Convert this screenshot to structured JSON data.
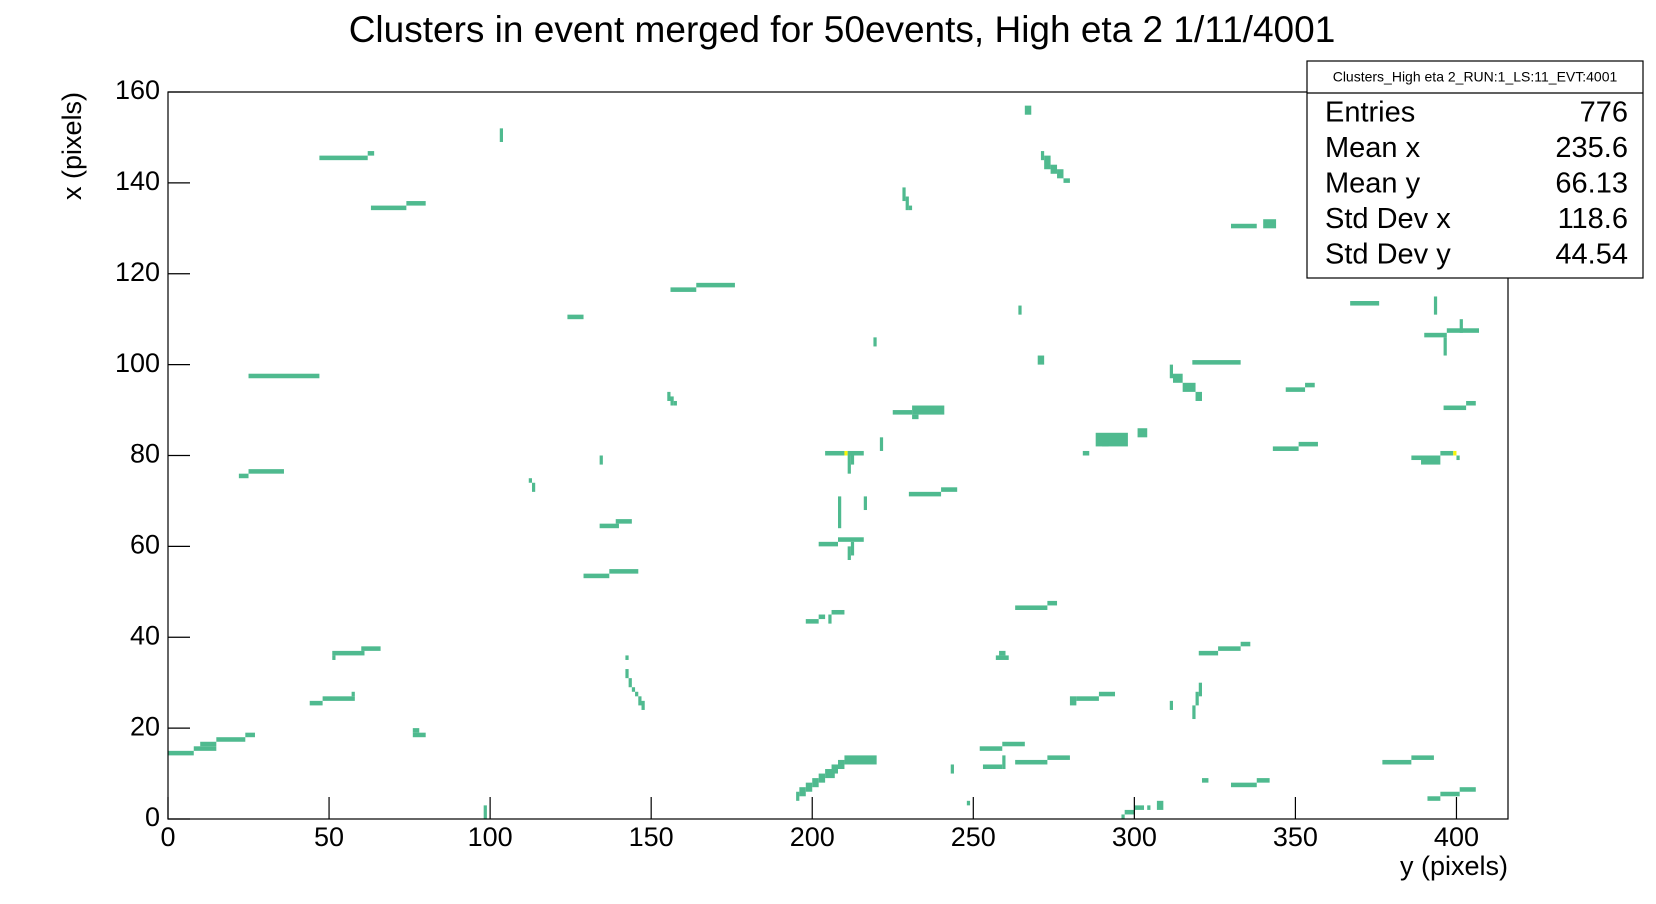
{
  "chart_data": {
    "type": "hist2d",
    "title": "Clusters in event merged for 50events, High eta 2 1/11/4001",
    "x_label": "y (pixels)",
    "y_label": "x (pixels)",
    "xlim": [
      0,
      416
    ],
    "ylim": [
      0,
      160
    ],
    "xticks": [
      0,
      50,
      100,
      150,
      200,
      250,
      300,
      350,
      400
    ],
    "yticks": [
      0,
      20,
      40,
      60,
      80,
      100,
      120,
      140,
      160
    ],
    "color_scale": [
      "#4fba8f",
      "#f5f50a"
    ],
    "zlim": [
      1,
      2
    ],
    "stats": {
      "title": "Clusters_High eta 2_RUN:1_LS:11_EVT:4001",
      "rows": [
        [
          "Entries",
          "776"
        ],
        [
          "Mean x",
          "235.6"
        ],
        [
          "Mean y",
          "66.13"
        ],
        [
          "Std Dev x",
          "118.6"
        ],
        [
          "Std Dev y",
          "44.54"
        ]
      ]
    },
    "cells": [
      [
        47,
        62,
        145,
        146,
        1
      ],
      [
        62,
        64,
        146,
        147,
        1
      ],
      [
        63,
        74,
        134,
        135,
        1
      ],
      [
        74,
        80,
        135,
        136,
        1
      ],
      [
        25,
        47,
        97,
        98,
        1
      ],
      [
        22,
        25,
        75,
        76,
        1
      ],
      [
        25,
        36,
        76,
        77,
        1
      ],
      [
        0,
        8,
        14,
        15,
        1
      ],
      [
        8,
        15,
        15,
        16,
        1
      ],
      [
        10,
        15,
        16,
        17,
        1
      ],
      [
        15,
        24,
        17,
        18,
        1
      ],
      [
        24,
        27,
        18,
        19,
        1
      ],
      [
        44,
        48,
        25,
        26,
        1
      ],
      [
        48,
        58,
        26,
        27,
        1
      ],
      [
        57,
        58,
        27,
        28,
        1
      ],
      [
        51,
        52,
        35,
        36,
        1
      ],
      [
        51,
        61,
        36,
        37,
        1
      ],
      [
        60,
        66,
        37,
        38,
        1
      ],
      [
        76,
        80,
        18,
        19,
        1
      ],
      [
        76,
        78,
        19,
        20,
        1
      ],
      [
        98,
        99,
        0,
        3,
        1
      ],
      [
        103,
        104,
        149,
        152,
        1
      ],
      [
        124,
        129,
        110,
        111,
        1
      ],
      [
        112,
        113,
        74,
        75,
        1
      ],
      [
        113,
        114,
        72,
        74,
        1
      ],
      [
        134,
        135,
        78,
        80,
        1
      ],
      [
        134,
        140,
        64,
        65,
        1
      ],
      [
        139,
        144,
        65,
        66,
        1
      ],
      [
        129,
        137,
        53,
        54,
        1
      ],
      [
        137,
        146,
        54,
        55,
        1
      ],
      [
        142,
        143,
        35,
        36,
        1
      ],
      [
        142,
        143,
        31,
        33,
        1
      ],
      [
        143,
        144,
        29,
        31,
        1
      ],
      [
        144,
        145,
        28,
        29,
        1
      ],
      [
        145,
        146,
        27,
        28,
        1
      ],
      [
        146,
        147,
        25,
        27,
        1
      ],
      [
        147,
        148,
        24,
        26,
        1
      ],
      [
        155,
        156,
        92,
        94,
        1
      ],
      [
        156,
        157,
        91,
        93,
        1
      ],
      [
        157,
        158,
        91,
        92,
        1
      ],
      [
        156,
        164,
        116,
        117,
        1
      ],
      [
        164,
        176,
        117,
        118,
        1
      ],
      [
        195,
        196,
        4,
        6,
        1
      ],
      [
        196,
        198,
        5,
        7,
        1
      ],
      [
        198,
        200,
        6,
        8,
        1
      ],
      [
        200,
        202,
        7,
        9,
        1
      ],
      [
        202,
        204,
        8,
        10,
        1
      ],
      [
        204,
        207,
        9,
        11,
        1
      ],
      [
        206,
        208,
        10,
        12,
        1
      ],
      [
        208,
        210,
        11,
        13,
        1
      ],
      [
        210,
        220,
        12,
        14,
        1
      ],
      [
        198,
        202,
        43,
        44,
        1
      ],
      [
        202,
        204,
        44,
        45,
        1
      ],
      [
        205,
        206,
        43,
        45,
        1
      ],
      [
        206,
        210,
        45,
        46,
        1
      ],
      [
        202,
        208,
        60,
        61,
        1
      ],
      [
        208,
        216,
        61,
        62,
        1
      ],
      [
        211,
        212,
        57,
        60,
        1
      ],
      [
        212,
        213,
        58,
        61,
        1
      ],
      [
        204,
        210,
        80,
        81,
        1
      ],
      [
        210,
        211,
        80,
        81,
        2
      ],
      [
        211,
        216,
        80,
        81,
        1
      ],
      [
        211,
        212,
        76,
        80,
        1
      ],
      [
        212,
        213,
        78,
        80,
        1
      ],
      [
        208,
        209,
        64,
        71,
        1
      ],
      [
        216,
        217,
        68,
        71,
        1
      ],
      [
        219,
        220,
        104,
        106,
        1
      ],
      [
        221,
        222,
        81,
        84,
        1
      ],
      [
        225,
        231,
        89,
        90,
        1
      ],
      [
        231,
        241,
        89,
        91,
        1
      ],
      [
        231,
        233,
        88,
        89,
        1
      ],
      [
        228,
        229,
        136,
        139,
        1
      ],
      [
        229,
        230,
        134,
        137,
        1
      ],
      [
        230,
        231,
        134,
        135,
        1
      ],
      [
        230,
        240,
        71,
        72,
        1
      ],
      [
        240,
        245,
        72,
        73,
        1
      ],
      [
        243,
        244,
        10,
        12,
        1
      ],
      [
        248,
        249,
        3,
        4,
        1
      ],
      [
        252,
        259,
        15,
        16,
        1
      ],
      [
        259,
        266,
        16,
        17,
        1
      ],
      [
        253,
        259,
        11,
        12,
        1
      ],
      [
        259,
        260,
        11,
        14,
        1
      ],
      [
        257,
        261,
        35,
        36,
        1
      ],
      [
        258,
        260,
        36,
        37,
        1
      ],
      [
        263,
        273,
        46,
        47,
        1
      ],
      [
        273,
        276,
        47,
        48,
        1
      ],
      [
        266,
        268,
        155,
        157,
        1
      ],
      [
        264,
        265,
        111,
        113,
        1
      ],
      [
        270,
        272,
        100,
        102,
        1
      ],
      [
        263,
        273,
        12,
        13,
        1
      ],
      [
        273,
        280,
        13,
        14,
        1
      ],
      [
        271,
        272,
        145,
        147,
        1
      ],
      [
        272,
        274,
        143,
        146,
        1
      ],
      [
        274,
        276,
        142,
        144,
        1
      ],
      [
        276,
        278,
        141,
        143,
        1
      ],
      [
        278,
        280,
        140,
        141,
        1
      ],
      [
        280,
        282,
        25,
        27,
        1
      ],
      [
        282,
        289,
        26,
        27,
        1
      ],
      [
        289,
        294,
        27,
        28,
        1
      ],
      [
        284,
        286,
        80,
        81,
        1
      ],
      [
        288,
        298,
        82,
        85,
        1
      ],
      [
        290,
        292,
        82,
        83,
        1
      ],
      [
        301,
        304,
        84,
        86,
        1
      ],
      [
        296,
        297,
        0,
        1,
        1
      ],
      [
        297,
        300,
        1,
        2,
        1
      ],
      [
        300,
        303,
        2,
        3,
        1
      ],
      [
        304,
        305,
        2,
        3,
        1
      ],
      [
        307,
        309,
        2,
        4,
        1
      ],
      [
        311,
        312,
        24,
        26,
        1
      ],
      [
        311,
        312,
        97,
        100,
        1
      ],
      [
        312,
        315,
        96,
        98,
        1
      ],
      [
        315,
        319,
        94,
        96,
        1
      ],
      [
        319,
        321,
        92,
        94,
        1
      ],
      [
        318,
        319,
        22,
        25,
        1
      ],
      [
        319,
        320,
        25,
        28,
        1
      ],
      [
        320,
        321,
        27,
        30,
        1
      ],
      [
        318,
        333,
        100,
        101,
        1
      ],
      [
        321,
        323,
        8,
        9,
        1
      ],
      [
        320,
        326,
        36,
        37,
        1
      ],
      [
        326,
        333,
        37,
        38,
        1
      ],
      [
        333,
        336,
        38,
        39,
        1
      ],
      [
        330,
        338,
        130,
        131,
        1
      ],
      [
        340,
        344,
        130,
        132,
        1
      ],
      [
        330,
        338,
        7,
        8,
        1
      ],
      [
        338,
        342,
        8,
        9,
        1
      ],
      [
        343,
        351,
        81,
        82,
        1
      ],
      [
        351,
        357,
        82,
        83,
        1
      ],
      [
        347,
        353,
        94,
        95,
        1
      ],
      [
        353,
        356,
        95,
        96,
        1
      ],
      [
        367,
        376,
        113,
        114,
        1
      ],
      [
        377,
        386,
        12,
        13,
        1
      ],
      [
        386,
        393,
        13,
        14,
        1
      ],
      [
        386,
        391,
        79,
        80,
        1
      ],
      [
        389,
        395,
        78,
        80,
        1
      ],
      [
        395,
        399,
        80,
        81,
        1
      ],
      [
        399,
        400,
        80,
        81,
        2
      ],
      [
        400,
        401,
        79,
        80,
        1
      ],
      [
        391,
        395,
        4,
        5,
        1
      ],
      [
        395,
        401,
        5,
        6,
        1
      ],
      [
        401,
        406,
        6,
        7,
        1
      ],
      [
        396,
        403,
        90,
        91,
        1
      ],
      [
        403,
        406,
        91,
        92,
        1
      ],
      [
        390,
        397,
        106,
        107,
        1
      ],
      [
        397,
        407,
        107,
        108,
        1
      ],
      [
        396,
        397,
        102,
        106,
        1
      ],
      [
        393,
        394,
        111,
        115,
        1
      ],
      [
        401,
        402,
        107,
        110,
        1
      ]
    ]
  }
}
